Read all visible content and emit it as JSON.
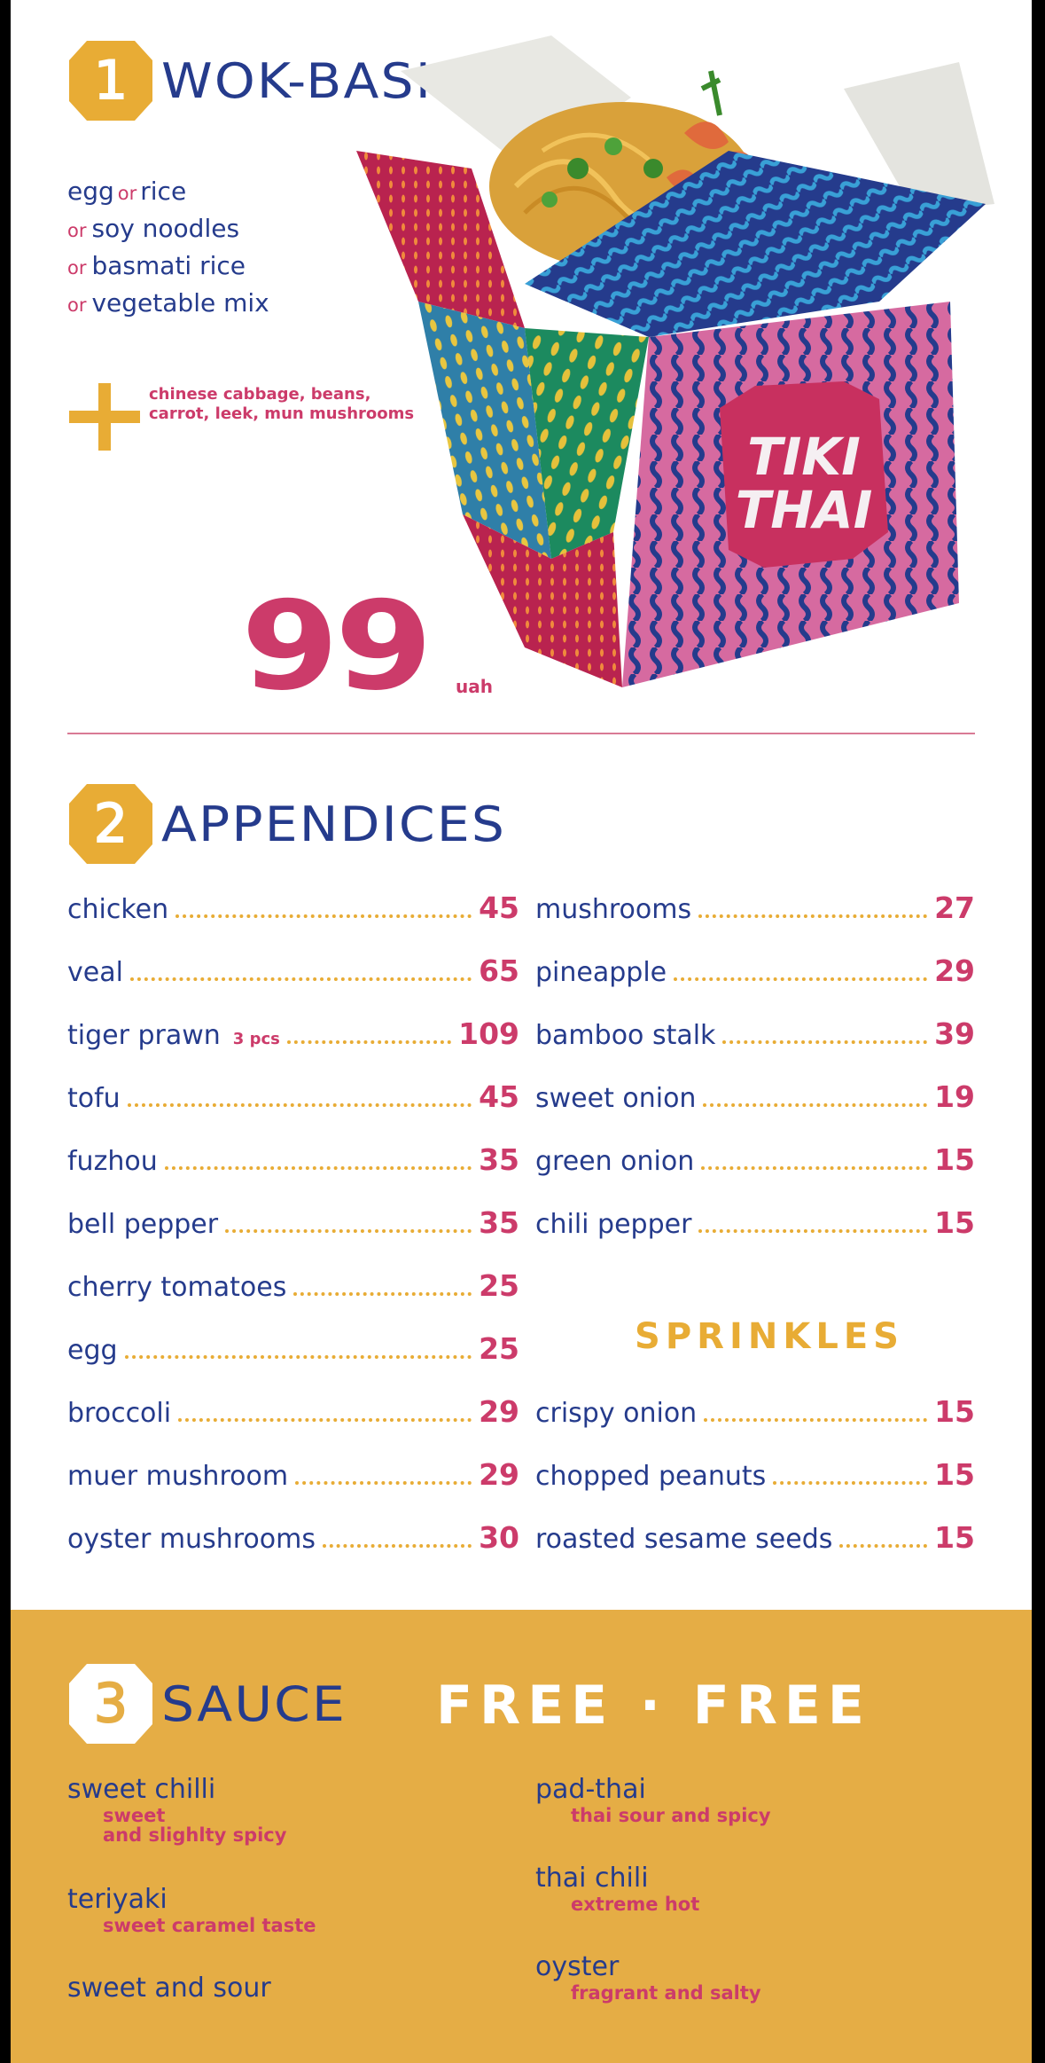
{
  "colors": {
    "navy": "#253b8c",
    "pink": "#cc3b6a",
    "mustard": "#e8ac35",
    "sauce_band": "#e5ad45"
  },
  "section1": {
    "number": "1",
    "title": "WOK-BASIS",
    "base_options": [
      {
        "prefix": "",
        "text": "egg"
      },
      {
        "prefix": "or",
        "text": "rice"
      },
      {
        "prefix": "or",
        "text": "soy noodles"
      },
      {
        "prefix": "or",
        "text": "basmati rice"
      },
      {
        "prefix": "or",
        "text": "vegetable mix"
      }
    ],
    "extras": "chinese cabbage, beans, carrot, leek, mun mushrooms",
    "price": "99",
    "currency": "uah",
    "box_brand_line1": "TIKI",
    "box_brand_line2": "THAI",
    "plus_icon": "plus-icon"
  },
  "section2": {
    "number": "2",
    "title": "APPENDICES",
    "left_items": [
      {
        "name": "chicken",
        "note": "",
        "price": "45"
      },
      {
        "name": "veal",
        "note": "",
        "price": "65"
      },
      {
        "name": "tiger prawn",
        "note": "3 pcs",
        "price": "109"
      },
      {
        "name": "tofu",
        "note": "",
        "price": "45"
      },
      {
        "name": "fuzhou",
        "note": "",
        "price": "35"
      },
      {
        "name": "bell pepper",
        "note": "",
        "price": "35"
      },
      {
        "name": "cherry tomatoes",
        "note": "",
        "price": "25"
      },
      {
        "name": "egg",
        "note": "",
        "price": "25"
      },
      {
        "name": "broccoli",
        "note": "",
        "price": "29"
      },
      {
        "name": "muer mushroom",
        "note": "",
        "price": "29"
      },
      {
        "name": "oyster mushrooms",
        "note": "",
        "price": "30"
      }
    ],
    "right_items": [
      {
        "name": "mushrooms",
        "price": "27"
      },
      {
        "name": "pineapple",
        "price": "29"
      },
      {
        "name": "bamboo stalk",
        "price": "39"
      },
      {
        "name": "sweet onion",
        "price": "19"
      },
      {
        "name": "green onion",
        "price": "15"
      },
      {
        "name": "chili pepper",
        "price": "15"
      }
    ],
    "sprinkles_title": "SPRINKLES",
    "sprinkles": [
      {
        "name": "crispy onion",
        "price": "15"
      },
      {
        "name": "chopped  peanuts",
        "price": "15"
      },
      {
        "name": "roasted sesame seeds",
        "price": "15"
      }
    ]
  },
  "section3": {
    "number": "3",
    "title": "SAUCE",
    "free_text": "FREE · FREE",
    "left_sauces": [
      {
        "name": "sweet chilli",
        "desc_line1": "sweet",
        "desc_line2": "and slighlty spicy"
      },
      {
        "name": "teriyaki",
        "desc_line1": "sweet caramel taste",
        "desc_line2": ""
      },
      {
        "name": "sweet and sour",
        "desc_line1": "",
        "desc_line2": ""
      }
    ],
    "right_sauces": [
      {
        "name": "pad-thai",
        "desc_line1": "thai sour and spicy"
      },
      {
        "name": "thai chili",
        "desc_line1": "extreme hot"
      },
      {
        "name": "oyster",
        "desc_line1": "fragrant and salty"
      }
    ]
  }
}
